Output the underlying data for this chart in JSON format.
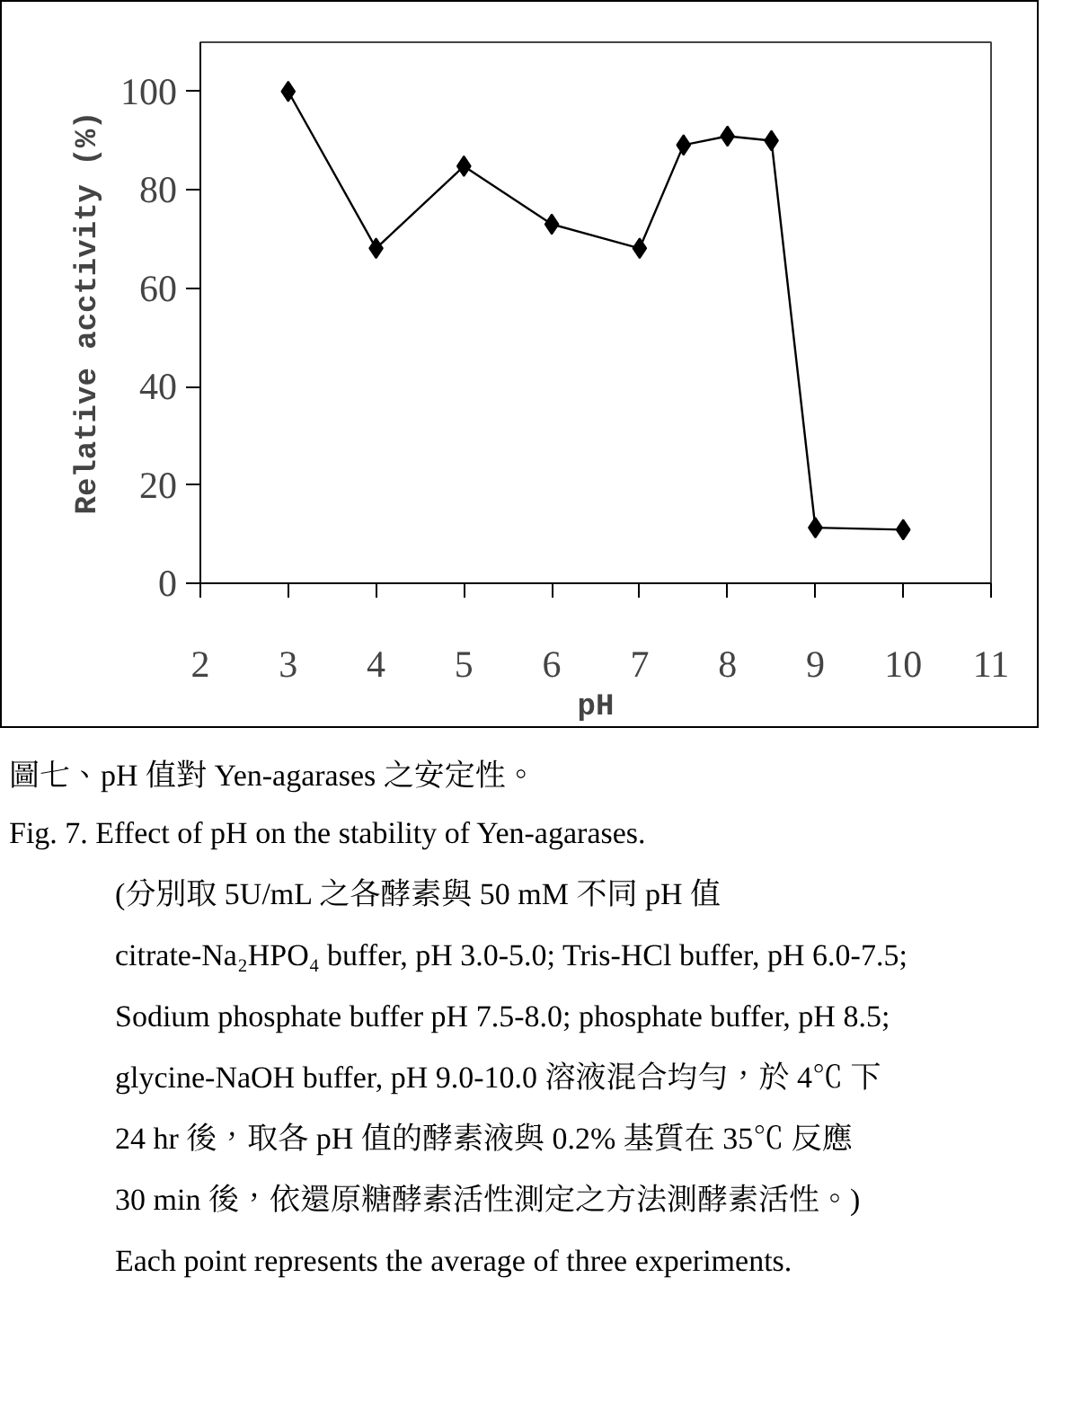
{
  "chart_data": {
    "type": "line",
    "title": "圖七、pH 值對 Yen-agarases 之安定性。",
    "subtitle": "Fig. 7. Effect of pH on the stability of Yen-agarases.",
    "xlabel": "pH",
    "ylabel": "Relative acctivity (%)",
    "x": [
      3,
      4,
      5,
      6,
      7,
      7.5,
      8,
      8.5,
      9,
      10
    ],
    "series": [
      {
        "color": "#000000",
        "values": [
          100,
          68.1,
          84.8,
          73.0,
          68.1,
          89.1,
          90.9,
          90.0,
          11.3,
          10.9
        ]
      }
    ],
    "xlim": [
      2,
      11
    ],
    "ylim": [
      0,
      110
    ],
    "xticks": [
      2,
      3,
      4,
      5,
      6,
      7,
      8,
      9,
      10,
      11
    ],
    "yticks": [
      0,
      20,
      40,
      60,
      80,
      100
    ],
    "marker": "diamond",
    "line_style": "solid",
    "annotations": [
      "(分別取 5U/mL 之各酵素與 50 mM 不同 pH 值",
      "citrate-Na₂HPO₄ buffer, pH 3.0-5.0; Tris-HCl buffer, pH 6.0-7.5;",
      "Sodium phosphate buffer pH 7.5-8.0; phosphate buffer, pH 8.5;",
      "glycine-NaOH buffer, pH 9.0-10.0 溶液混合均勻，於 4℃ 下",
      "24 hr 後，取各 pH 值的酵素液與 0.2% 基質在 35℃ 反應",
      "30 min 後，依還原糖酵素活性測定之方法測酵素活性。)",
      "Each point represents the average of three experiments."
    ]
  }
}
